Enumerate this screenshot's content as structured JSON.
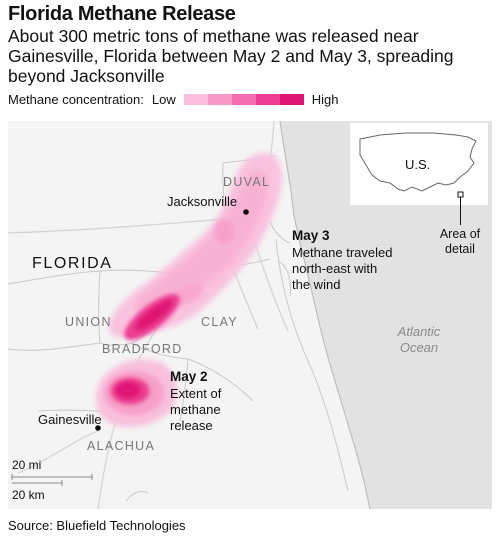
{
  "header": {
    "title": "Florida Methane Release",
    "subtitle": "About 300 metric tons of methane was released near Gainesville, Florida between May 2 and May 3, spreading beyond Jacksonville"
  },
  "legend": {
    "label": "Methane concentration:",
    "low": "Low",
    "high": "High",
    "colors": [
      "#f9bfdc",
      "#f79ac7",
      "#f46fb0",
      "#ee3d93",
      "#e01675"
    ]
  },
  "map": {
    "state": "FLORIDA",
    "counties": {
      "duval": "DUVAL",
      "union": "UNION",
      "clay": "CLAY",
      "bradford": "BRADFORD",
      "alachua": "ALACHUA"
    },
    "cities": {
      "jacksonville": "Jacksonville",
      "gainesville": "Gainesville"
    },
    "ocean": [
      "Atlantic",
      "Ocean"
    ],
    "annotations": {
      "may3": {
        "title": "May 3",
        "lines": [
          "Methane traveled",
          "north-east with",
          "the wind"
        ]
      },
      "may2": {
        "title": "May 2",
        "lines": [
          "Extent of",
          "methane",
          "release"
        ]
      }
    },
    "inset": {
      "country": "U.S.",
      "caption": [
        "Area of",
        "detail"
      ]
    },
    "scale": {
      "miles": "20 mi",
      "km": "20 km"
    }
  },
  "source": "Source: Bluefield Technologies"
}
